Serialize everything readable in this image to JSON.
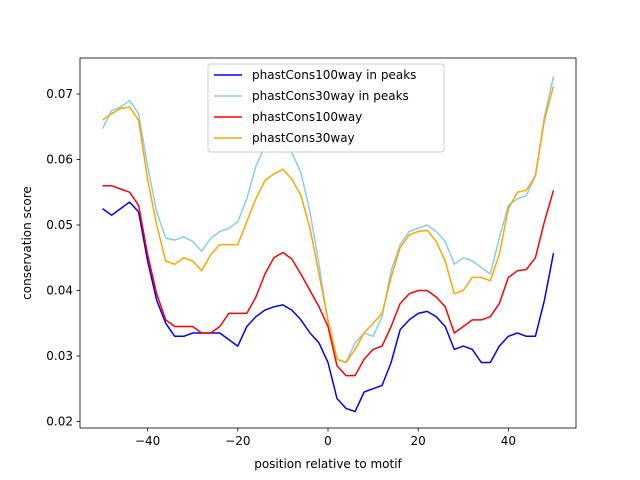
{
  "chart_data": {
    "type": "line",
    "title": "",
    "xlabel": "position relative to motif",
    "ylabel": "conservation score",
    "xlim": [
      -55,
      55
    ],
    "ylim": [
      0.019,
      0.0755
    ],
    "xticks": [
      -40,
      -20,
      0,
      20,
      40
    ],
    "yticks": [
      0.02,
      0.03,
      0.04,
      0.05,
      0.06,
      0.07
    ],
    "xtick_labels": [
      "−40",
      "−20",
      "0",
      "20",
      "40"
    ],
    "ytick_labels": [
      "0.02",
      "0.03",
      "0.04",
      "0.05",
      "0.06",
      "0.07"
    ],
    "grid": false,
    "legend_position": "upper-center",
    "x": [
      -50,
      -48,
      -46,
      -44,
      -42,
      -40,
      -38,
      -36,
      -34,
      -32,
      -30,
      -28,
      -26,
      -24,
      -22,
      -20,
      -18,
      -16,
      -14,
      -12,
      -10,
      -8,
      -6,
      -4,
      -2,
      0,
      2,
      4,
      6,
      8,
      10,
      12,
      14,
      16,
      18,
      20,
      22,
      24,
      26,
      28,
      30,
      32,
      34,
      36,
      38,
      40,
      42,
      44,
      46,
      48,
      50
    ],
    "series": [
      {
        "name": "phastCons100way in peaks",
        "color": "#0000ff",
        "values": [
          0.0525,
          0.0515,
          0.0525,
          0.0535,
          0.052,
          0.0445,
          0.0385,
          0.035,
          0.033,
          0.033,
          0.0335,
          0.0335,
          0.0335,
          0.0335,
          0.0325,
          0.0315,
          0.0345,
          0.036,
          0.037,
          0.0375,
          0.0378,
          0.037,
          0.0355,
          0.0335,
          0.032,
          0.029,
          0.0235,
          0.022,
          0.0215,
          0.0245,
          0.025,
          0.0255,
          0.029,
          0.034,
          0.0355,
          0.0365,
          0.0368,
          0.036,
          0.0345,
          0.031,
          0.0315,
          0.031,
          0.029,
          0.029,
          0.0315,
          0.033,
          0.0335,
          0.033,
          0.033,
          0.0385,
          0.0457
        ]
      },
      {
        "name": "phastCons30way in peaks",
        "color": "#87ceeb",
        "values": [
          0.0647,
          0.0675,
          0.068,
          0.069,
          0.067,
          0.059,
          0.052,
          0.048,
          0.0477,
          0.0482,
          0.0475,
          0.046,
          0.048,
          0.049,
          0.0495,
          0.0505,
          0.054,
          0.059,
          0.062,
          0.0625,
          0.0625,
          0.061,
          0.058,
          0.052,
          0.044,
          0.035,
          0.0295,
          0.029,
          0.032,
          0.0335,
          0.033,
          0.036,
          0.043,
          0.047,
          0.049,
          0.0495,
          0.05,
          0.049,
          0.0475,
          0.044,
          0.045,
          0.0445,
          0.0435,
          0.0425,
          0.048,
          0.053,
          0.054,
          0.0545,
          0.0575,
          0.0665,
          0.0727
        ]
      },
      {
        "name": "phastCons100way",
        "color": "#ff0000",
        "values": [
          0.056,
          0.056,
          0.0555,
          0.055,
          0.053,
          0.0455,
          0.0395,
          0.0355,
          0.0345,
          0.0345,
          0.0345,
          0.0335,
          0.0335,
          0.0345,
          0.0365,
          0.0365,
          0.0365,
          0.039,
          0.0425,
          0.045,
          0.0458,
          0.0448,
          0.0425,
          0.04,
          0.0375,
          0.0345,
          0.0285,
          0.027,
          0.027,
          0.0295,
          0.031,
          0.0315,
          0.0345,
          0.038,
          0.0395,
          0.04,
          0.04,
          0.039,
          0.0375,
          0.0335,
          0.0345,
          0.0355,
          0.0355,
          0.036,
          0.038,
          0.042,
          0.043,
          0.0432,
          0.045,
          0.0505,
          0.0553
        ]
      },
      {
        "name": "phastCons30way",
        "color": "#ffa500",
        "values": [
          0.066,
          0.067,
          0.0678,
          0.068,
          0.066,
          0.057,
          0.05,
          0.0445,
          0.044,
          0.045,
          0.0445,
          0.043,
          0.0455,
          0.047,
          0.047,
          0.047,
          0.0505,
          0.054,
          0.0568,
          0.0578,
          0.0585,
          0.057,
          0.0545,
          0.0495,
          0.0425,
          0.0355,
          0.0295,
          0.029,
          0.031,
          0.0335,
          0.035,
          0.0365,
          0.042,
          0.0465,
          0.0485,
          0.049,
          0.0492,
          0.0475,
          0.0445,
          0.0395,
          0.04,
          0.042,
          0.042,
          0.0415,
          0.0455,
          0.0525,
          0.055,
          0.0553,
          0.0575,
          0.066,
          0.0712
        ]
      }
    ]
  }
}
